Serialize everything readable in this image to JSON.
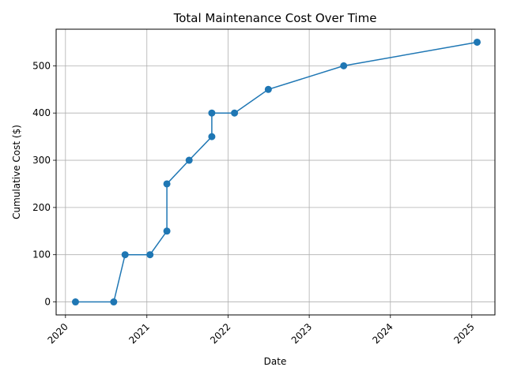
{
  "chart_data": {
    "type": "line",
    "title": "Total Maintenance Cost Over Time",
    "xlabel": "Date",
    "ylabel": "Cumulative Cost ($)",
    "x_axis_type": "date",
    "xlim": [
      "2019-11-20",
      "2025-04-15"
    ],
    "ylim": [
      -27.5,
      577.5
    ],
    "grid": true,
    "line_color": "#1f77b4",
    "marker": "circle",
    "xticks": [
      {
        "date": "2020-01-01",
        "label": "2020"
      },
      {
        "date": "2021-01-01",
        "label": "2021"
      },
      {
        "date": "2022-01-01",
        "label": "2022"
      },
      {
        "date": "2023-01-01",
        "label": "2023"
      },
      {
        "date": "2024-01-01",
        "label": "2024"
      },
      {
        "date": "2025-01-01",
        "label": "2025"
      }
    ],
    "yticks": [
      0,
      100,
      200,
      300,
      400,
      500
    ],
    "series": [
      {
        "points": [
          {
            "x": "2020-02-15",
            "y": 0
          },
          {
            "x": "2020-08-05",
            "y": 0
          },
          {
            "x": "2020-09-25",
            "y": 100
          },
          {
            "x": "2021-01-15",
            "y": 100
          },
          {
            "x": "2021-04-01",
            "y": 150
          },
          {
            "x": "2021-04-01",
            "y": 250
          },
          {
            "x": "2021-07-10",
            "y": 300
          },
          {
            "x": "2021-10-20",
            "y": 350
          },
          {
            "x": "2021-10-20",
            "y": 400
          },
          {
            "x": "2022-01-30",
            "y": 400
          },
          {
            "x": "2022-07-01",
            "y": 450
          },
          {
            "x": "2023-06-05",
            "y": 500
          },
          {
            "x": "2025-01-25",
            "y": 550
          }
        ]
      }
    ]
  }
}
